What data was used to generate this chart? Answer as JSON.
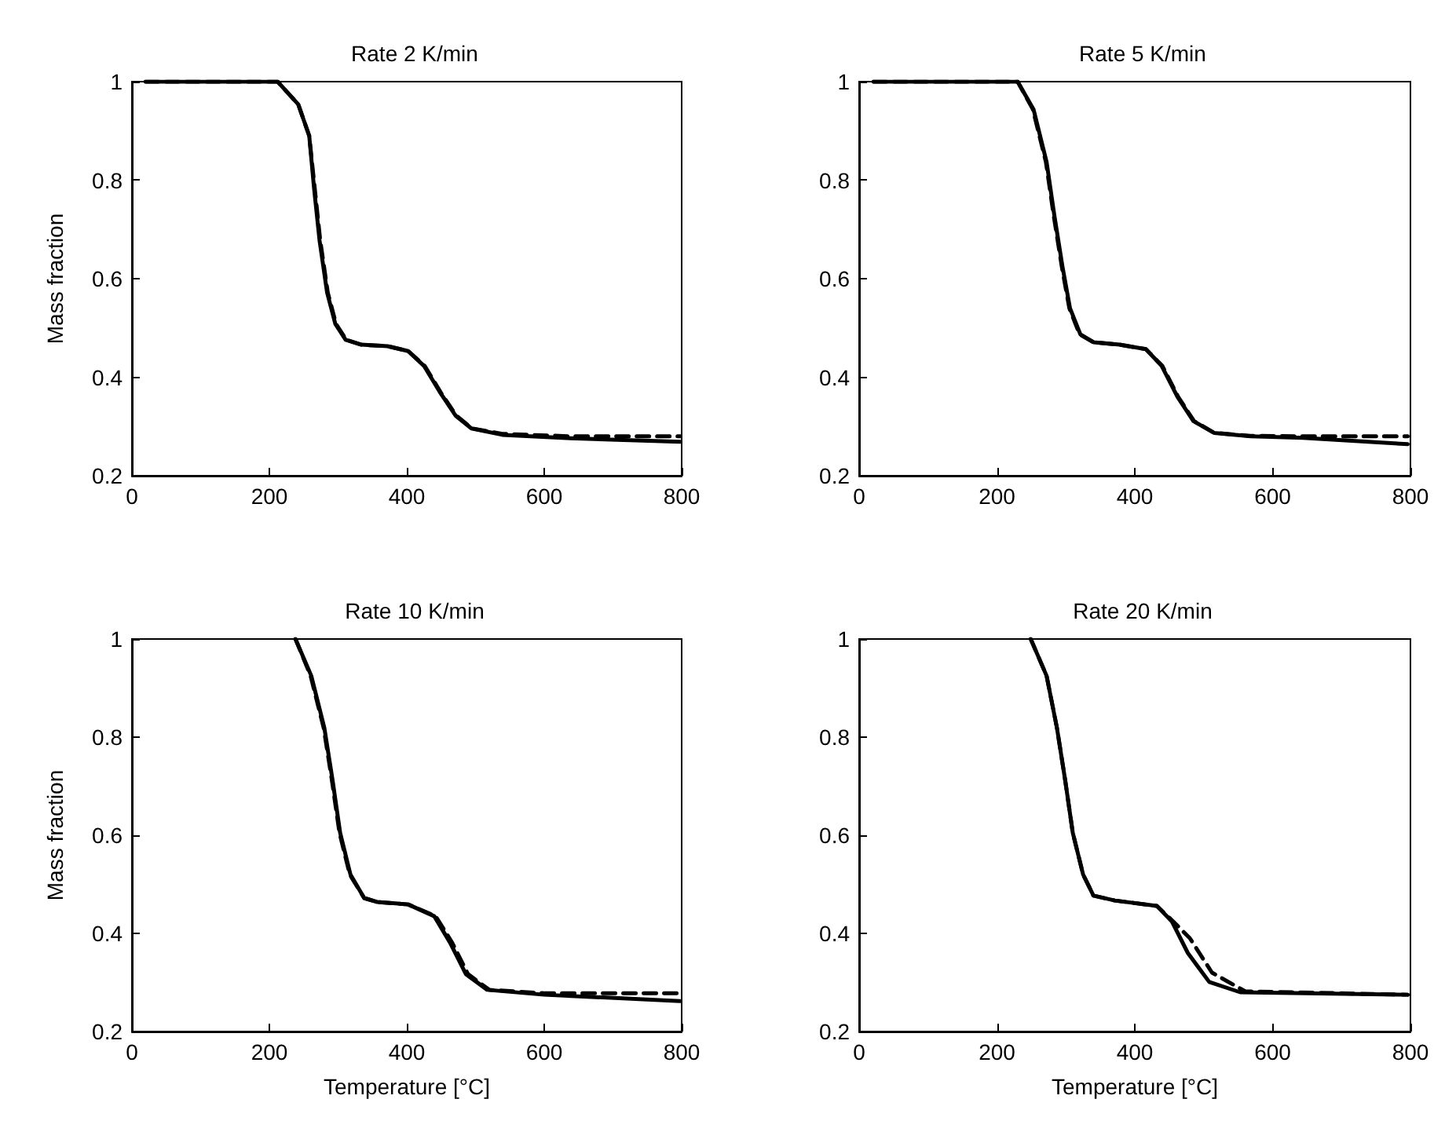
{
  "chart_data": [
    {
      "type": "line",
      "title": "Rate 2 K/min",
      "ylabel": "Mass fraction",
      "xlim": [
        0,
        800
      ],
      "xticks": [
        0,
        200,
        400,
        600,
        800
      ],
      "ylim": [
        0.2,
        1
      ],
      "yticks": [
        0.2,
        0.4,
        0.6,
        0.8,
        1
      ],
      "series": [
        {
          "color": "#000000",
          "line_style": "solid",
          "x": [
            20,
            212,
            242,
            258,
            265,
            273,
            284,
            296,
            311,
            334,
            372,
            402,
            425,
            448,
            471,
            494,
            539,
            638,
            798
          ],
          "values": [
            1,
            1,
            0.954,
            0.89,
            0.784,
            0.678,
            0.572,
            0.508,
            0.476,
            0.466,
            0.463,
            0.453,
            0.423,
            0.37,
            0.322,
            0.296,
            0.283,
            0.276,
            0.269
          ]
        },
        {
          "color": "#000000",
          "line_style": "dashed",
          "x": [
            20,
            212,
            242,
            258,
            266,
            274,
            285,
            297,
            312,
            334,
            372,
            402,
            426,
            449,
            472,
            495,
            539,
            638,
            798
          ],
          "values": [
            1,
            1,
            0.954,
            0.89,
            0.784,
            0.678,
            0.572,
            0.508,
            0.476,
            0.466,
            0.463,
            0.453,
            0.423,
            0.37,
            0.322,
            0.296,
            0.285,
            0.28,
            0.28
          ]
        }
      ]
    },
    {
      "type": "line",
      "title": "Rate 5 K/min",
      "xlim": [
        0,
        800
      ],
      "xticks": [
        0,
        200,
        400,
        600,
        800
      ],
      "ylim": [
        0.2,
        1
      ],
      "yticks": [
        0.2,
        0.4,
        0.6,
        0.8,
        1
      ],
      "series": [
        {
          "color": "#000000",
          "line_style": "solid",
          "x": [
            21,
            230,
            253,
            272,
            283,
            295,
            306,
            321,
            340,
            378,
            416,
            439,
            462,
            485,
            515,
            568,
            644,
            796
          ],
          "values": [
            1,
            1,
            0.944,
            0.837,
            0.731,
            0.625,
            0.54,
            0.487,
            0.471,
            0.466,
            0.457,
            0.423,
            0.36,
            0.311,
            0.287,
            0.28,
            0.277,
            0.264
          ]
        },
        {
          "color": "#000000",
          "line_style": "dashed",
          "x": [
            21,
            230,
            252,
            271,
            282,
            294,
            305,
            320,
            340,
            378,
            416,
            440,
            463,
            486,
            515,
            568,
            644,
            796
          ],
          "values": [
            1,
            1,
            0.944,
            0.837,
            0.731,
            0.625,
            0.54,
            0.487,
            0.471,
            0.466,
            0.457,
            0.423,
            0.36,
            0.311,
            0.287,
            0.281,
            0.28,
            0.28
          ]
        }
      ]
    },
    {
      "type": "line",
      "title": "Rate 10 K/min",
      "xlabel": "Temperature [°C]",
      "ylabel": "Mass fraction",
      "xlim": [
        0,
        800
      ],
      "xticks": [
        0,
        200,
        400,
        600,
        800
      ],
      "ylim": [
        0.2,
        1
      ],
      "yticks": [
        0.2,
        0.4,
        0.6,
        0.8,
        1
      ],
      "series": [
        {
          "color": "#000000",
          "line_style": "solid",
          "x": [
            238,
            261,
            280,
            292,
            303,
            318,
            338,
            357,
            402,
            440,
            463,
            486,
            517,
            600,
            798
          ],
          "values": [
            1,
            0.925,
            0.819,
            0.712,
            0.605,
            0.52,
            0.472,
            0.464,
            0.459,
            0.435,
            0.381,
            0.317,
            0.285,
            0.275,
            0.262
          ]
        },
        {
          "color": "#000000",
          "line_style": "dashed",
          "x": [
            238,
            260,
            279,
            291,
            302,
            317,
            338,
            357,
            402,
            442,
            466,
            489,
            520,
            600,
            798
          ],
          "values": [
            1,
            0.925,
            0.819,
            0.712,
            0.605,
            0.52,
            0.472,
            0.464,
            0.459,
            0.435,
            0.381,
            0.317,
            0.285,
            0.278,
            0.278
          ]
        }
      ]
    },
    {
      "type": "line",
      "title": "Rate 20 K/min",
      "xlabel": "Temperature [°C]",
      "xlim": [
        0,
        800
      ],
      "xticks": [
        0,
        200,
        400,
        600,
        800
      ],
      "ylim": [
        0.2,
        1
      ],
      "yticks": [
        0.2,
        0.4,
        0.6,
        0.8,
        1
      ],
      "series": [
        {
          "color": "#000000",
          "line_style": "solid",
          "x": [
            249,
            272,
            287,
            299,
            310,
            325,
            340,
            371,
            432,
            454,
            477,
            508,
            553,
            796
          ],
          "values": [
            1,
            0.925,
            0.819,
            0.712,
            0.605,
            0.52,
            0.477,
            0.467,
            0.456,
            0.424,
            0.36,
            0.301,
            0.28,
            0.275
          ]
        },
        {
          "color": "#000000",
          "line_style": "dashed",
          "x": [
            249,
            272,
            287,
            299,
            310,
            325,
            340,
            371,
            432,
            456,
            480,
            512,
            560,
            796
          ],
          "values": [
            1,
            0.925,
            0.819,
            0.712,
            0.605,
            0.52,
            0.477,
            0.467,
            0.456,
            0.424,
            0.39,
            0.32,
            0.282,
            0.275
          ]
        }
      ]
    }
  ]
}
